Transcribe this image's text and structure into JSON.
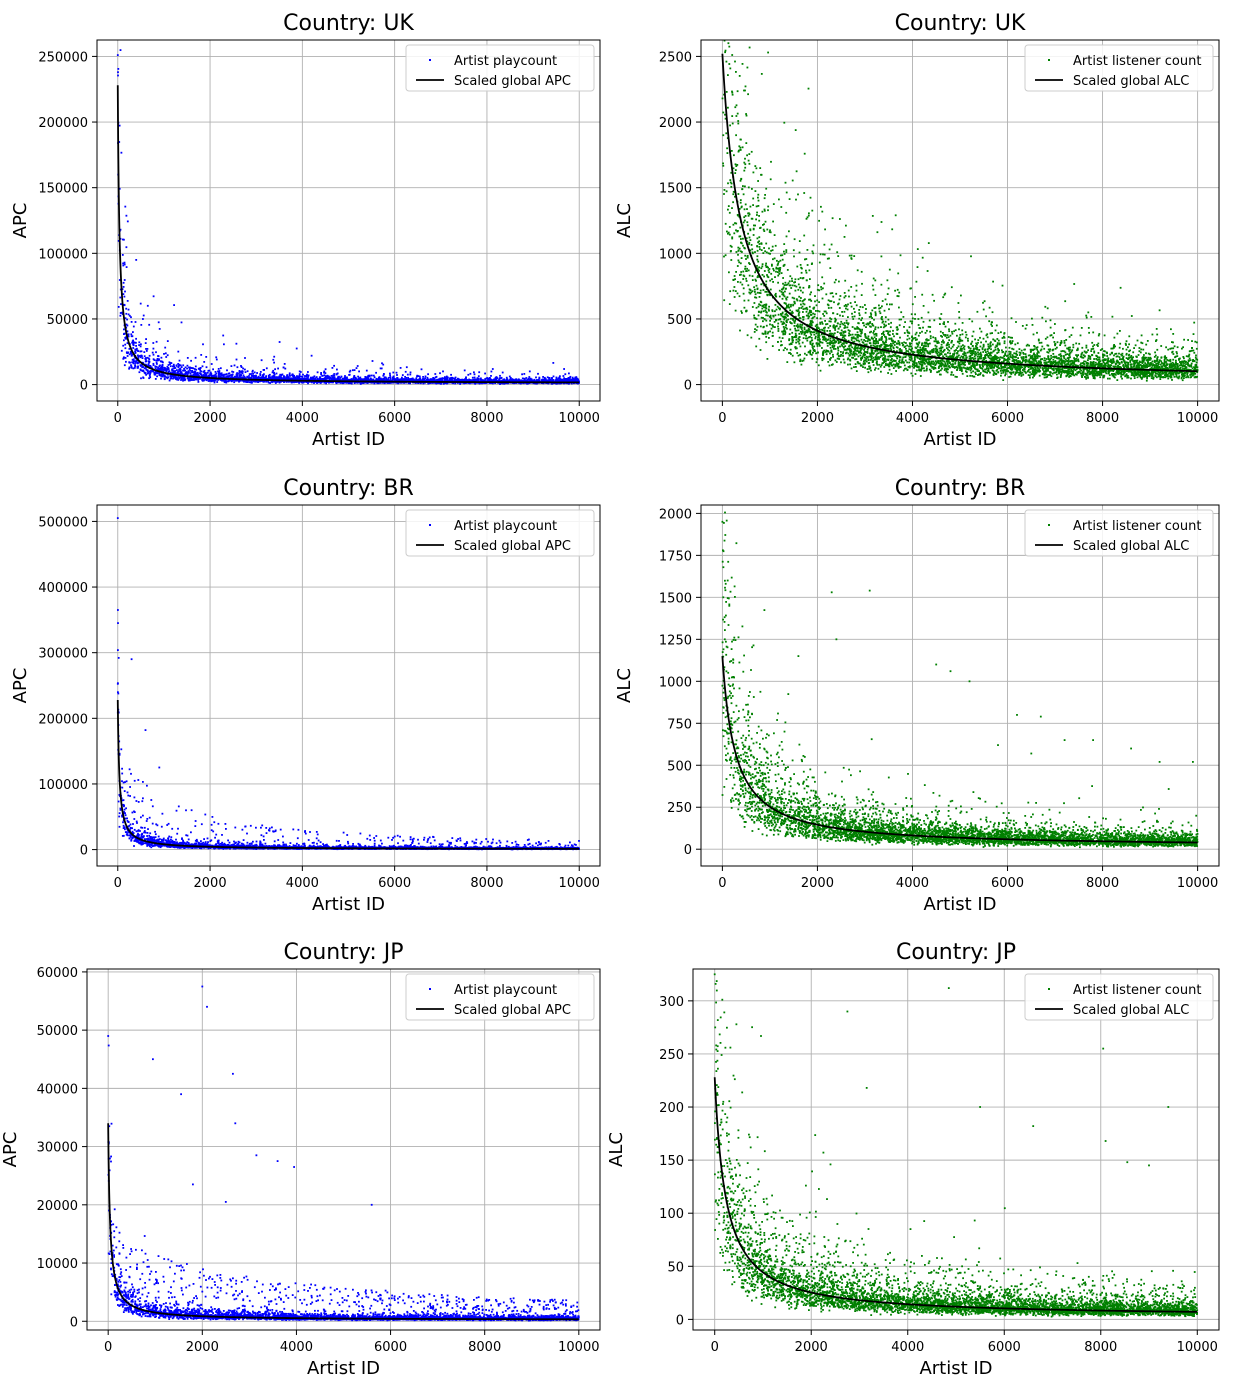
{
  "figure": {
    "colors": {
      "apc_points": "#0000ff",
      "alc_points": "#008000",
      "fit_line": "#000000",
      "grid": "#b0b0b0"
    }
  },
  "chart_data": [
    {
      "type": "scatter",
      "title": "Country: UK",
      "xlabel": "Artist ID",
      "ylabel": "APC",
      "xlim": [
        -450,
        10450
      ],
      "ylim": [
        -12500,
        262500
      ],
      "xticks": [
        0,
        2000,
        4000,
        6000,
        8000,
        10000
      ],
      "yticks": [
        0,
        50000,
        100000,
        150000,
        200000,
        250000
      ],
      "grid": true,
      "legend_position": "top-right",
      "series": [
        {
          "name": "Artist playcount",
          "kind": "points",
          "color": "#0000ff",
          "model": {
            "peak": 230000,
            "floor": 1200,
            "k": 38,
            "spread": 2.6,
            "count": 3600,
            "outliers": [
              [
                0,
                251000
              ],
              [
                5,
                238000
              ],
              [
                10,
                160000
              ],
              [
                60,
                118000
              ],
              [
                400,
                95000
              ],
              [
                650,
                60000
              ],
              [
                4200,
                22000
              ]
            ]
          }
        },
        {
          "name": "Scaled global APC",
          "kind": "line",
          "color": "#000000",
          "model": {
            "peak": 228000,
            "floor": 800,
            "k": 38
          }
        }
      ]
    },
    {
      "type": "scatter",
      "title": "Country: UK",
      "xlabel": "Artist ID",
      "ylabel": "ALC",
      "xlim": [
        -450,
        10450
      ],
      "ylim": [
        -125,
        2625
      ],
      "xticks": [
        0,
        2000,
        4000,
        6000,
        8000,
        10000
      ],
      "yticks": [
        0,
        500,
        1000,
        1500,
        2000,
        2500
      ],
      "grid": true,
      "legend_position": "top-right",
      "series": [
        {
          "name": "Artist listener count",
          "kind": "points",
          "color": "#008000",
          "model": {
            "peak": 2500,
            "floor": 20,
            "k": 380,
            "spread": 1.9,
            "count": 5200,
            "outliers": [
              [
                20,
                1900
              ],
              [
                100,
                1800
              ],
              [
                400,
                1350
              ],
              [
                2600,
                580
              ],
              [
                3300,
                580
              ],
              [
                9800,
                340
              ]
            ]
          }
        },
        {
          "name": "Scaled global ALC",
          "kind": "line",
          "color": "#000000",
          "model": {
            "peak": 2520,
            "floor": 10,
            "k": 380
          }
        }
      ]
    },
    {
      "type": "scatter",
      "title": "Country: BR",
      "xlabel": "Artist ID",
      "ylabel": "APC",
      "xlim": [
        -450,
        10450
      ],
      "ylim": [
        -25000,
        525000
      ],
      "xticks": [
        0,
        2000,
        4000,
        6000,
        8000,
        10000
      ],
      "yticks": [
        0,
        100000,
        200000,
        300000,
        400000,
        500000
      ],
      "grid": true,
      "legend_position": "top-right",
      "series": [
        {
          "name": "Artist playcount",
          "kind": "points",
          "color": "#0000ff",
          "model": {
            "peak": 230000,
            "floor": 600,
            "k": 35,
            "spread": 2.4,
            "count": 3600,
            "band": {
              "amp": 120000,
              "k": 900,
              "count": 160
            },
            "outliers": [
              [
                0,
                505000
              ],
              [
                5,
                345000
              ],
              [
                20,
                292000
              ],
              [
                300,
                290000
              ],
              [
                600,
                182000
              ],
              [
                900,
                125000
              ],
              [
                1600,
                60000
              ]
            ]
          }
        },
        {
          "name": "Scaled global APC",
          "kind": "line",
          "color": "#000000",
          "model": {
            "peak": 228000,
            "floor": 400,
            "k": 35
          }
        }
      ]
    },
    {
      "type": "scatter",
      "title": "Country: BR",
      "xlabel": "Artist ID",
      "ylabel": "ALC",
      "xlim": [
        -450,
        10450
      ],
      "ylim": [
        -100,
        2050
      ],
      "xticks": [
        0,
        2000,
        4000,
        6000,
        8000,
        10000
      ],
      "yticks": [
        0,
        250,
        500,
        750,
        1000,
        1250,
        1500,
        1750,
        2000
      ],
      "grid": true,
      "legend_position": "top-right",
      "series": [
        {
          "name": "Artist listener count",
          "kind": "points",
          "color": "#008000",
          "model": {
            "peak": 1150,
            "floor": 15,
            "k": 270,
            "spread": 2.0,
            "count": 5200,
            "outliers": [
              [
                0,
                1950
              ],
              [
                10,
                1780
              ],
              [
                20,
                1500
              ],
              [
                50,
                1250
              ],
              [
                1600,
                1150
              ],
              [
                2300,
                1530
              ],
              [
                3100,
                1540
              ],
              [
                2400,
                1250
              ],
              [
                4500,
                1100
              ],
              [
                4800,
                1060
              ],
              [
                5200,
                1000
              ],
              [
                6200,
                800
              ],
              [
                6700,
                790
              ],
              [
                7800,
                650
              ],
              [
                8600,
                600
              ],
              [
                9200,
                520
              ],
              [
                9900,
                520
              ],
              [
                5800,
                620
              ],
              [
                6500,
                570
              ],
              [
                7200,
                650
              ]
            ]
          }
        },
        {
          "name": "Scaled global ALC",
          "kind": "line",
          "color": "#000000",
          "model": {
            "peak": 1150,
            "floor": 10,
            "k": 270
          }
        }
      ]
    },
    {
      "type": "scatter",
      "title": "Country: JP",
      "xlabel": "Artist ID",
      "ylabel": "APC",
      "xlim": [
        -450,
        10450
      ],
      "ylim": [
        -1500,
        60500
      ],
      "xticks": [
        0,
        2000,
        4000,
        6000,
        8000,
        10000
      ],
      "yticks": [
        0,
        10000,
        20000,
        30000,
        40000,
        50000,
        60000
      ],
      "grid": true,
      "legend_position": "top-right",
      "series": [
        {
          "name": "Artist playcount",
          "kind": "points",
          "color": "#0000ff",
          "model": {
            "peak": 34000,
            "floor": 300,
            "k": 40,
            "spread": 3.2,
            "count": 3600,
            "band": {
              "amp": 11000,
              "k": 3000,
              "count": 340
            },
            "outliers": [
              [
                0,
                49000
              ],
              [
                950,
                45000
              ],
              [
                1550,
                39000
              ],
              [
                2000,
                57500
              ],
              [
                2100,
                54000
              ],
              [
                2650,
                42500
              ],
              [
                2700,
                34000
              ],
              [
                3150,
                28500
              ],
              [
                3600,
                27500
              ],
              [
                3950,
                26500
              ],
              [
                5600,
                20000
              ],
              [
                1800,
                23500
              ],
              [
                2500,
                20500
              ]
            ]
          }
        },
        {
          "name": "Scaled global APC",
          "kind": "line",
          "color": "#000000",
          "model": {
            "peak": 34000,
            "floor": 200,
            "k": 40
          }
        }
      ]
    },
    {
      "type": "scatter",
      "title": "Country: JP",
      "xlabel": "Artist ID",
      "ylabel": "ALC",
      "xlim": [
        -450,
        10450
      ],
      "ylim": [
        -10,
        330
      ],
      "xticks": [
        0,
        2000,
        4000,
        6000,
        8000,
        10000
      ],
      "yticks": [
        0,
        50,
        100,
        150,
        200,
        250,
        300
      ],
      "grid": true,
      "legend_position": "top-right",
      "series": [
        {
          "name": "Artist listener count",
          "kind": "points",
          "color": "#008000",
          "model": {
            "peak": 228,
            "floor": 3,
            "k": 230,
            "spread": 2.2,
            "count": 5200,
            "band": {
              "amp": 90,
              "k": 4000,
              "count": 180
            },
            "outliers": [
              [
                0,
                325
              ],
              [
                10,
                275
              ],
              [
                30,
                258
              ],
              [
                2750,
                290
              ],
              [
                4850,
                312
              ],
              [
                8050,
                255
              ],
              [
                3150,
                218
              ],
              [
                5500,
                200
              ],
              [
                9400,
                200
              ],
              [
                6600,
                182
              ],
              [
                2400,
                146
              ],
              [
                8100,
                168
              ],
              [
                8550,
                148
              ],
              [
                9000,
                145
              ]
            ]
          }
        },
        {
          "name": "Scaled global ALC",
          "kind": "line",
          "color": "#000000",
          "model": {
            "peak": 228,
            "floor": 2,
            "k": 230
          }
        }
      ]
    }
  ]
}
